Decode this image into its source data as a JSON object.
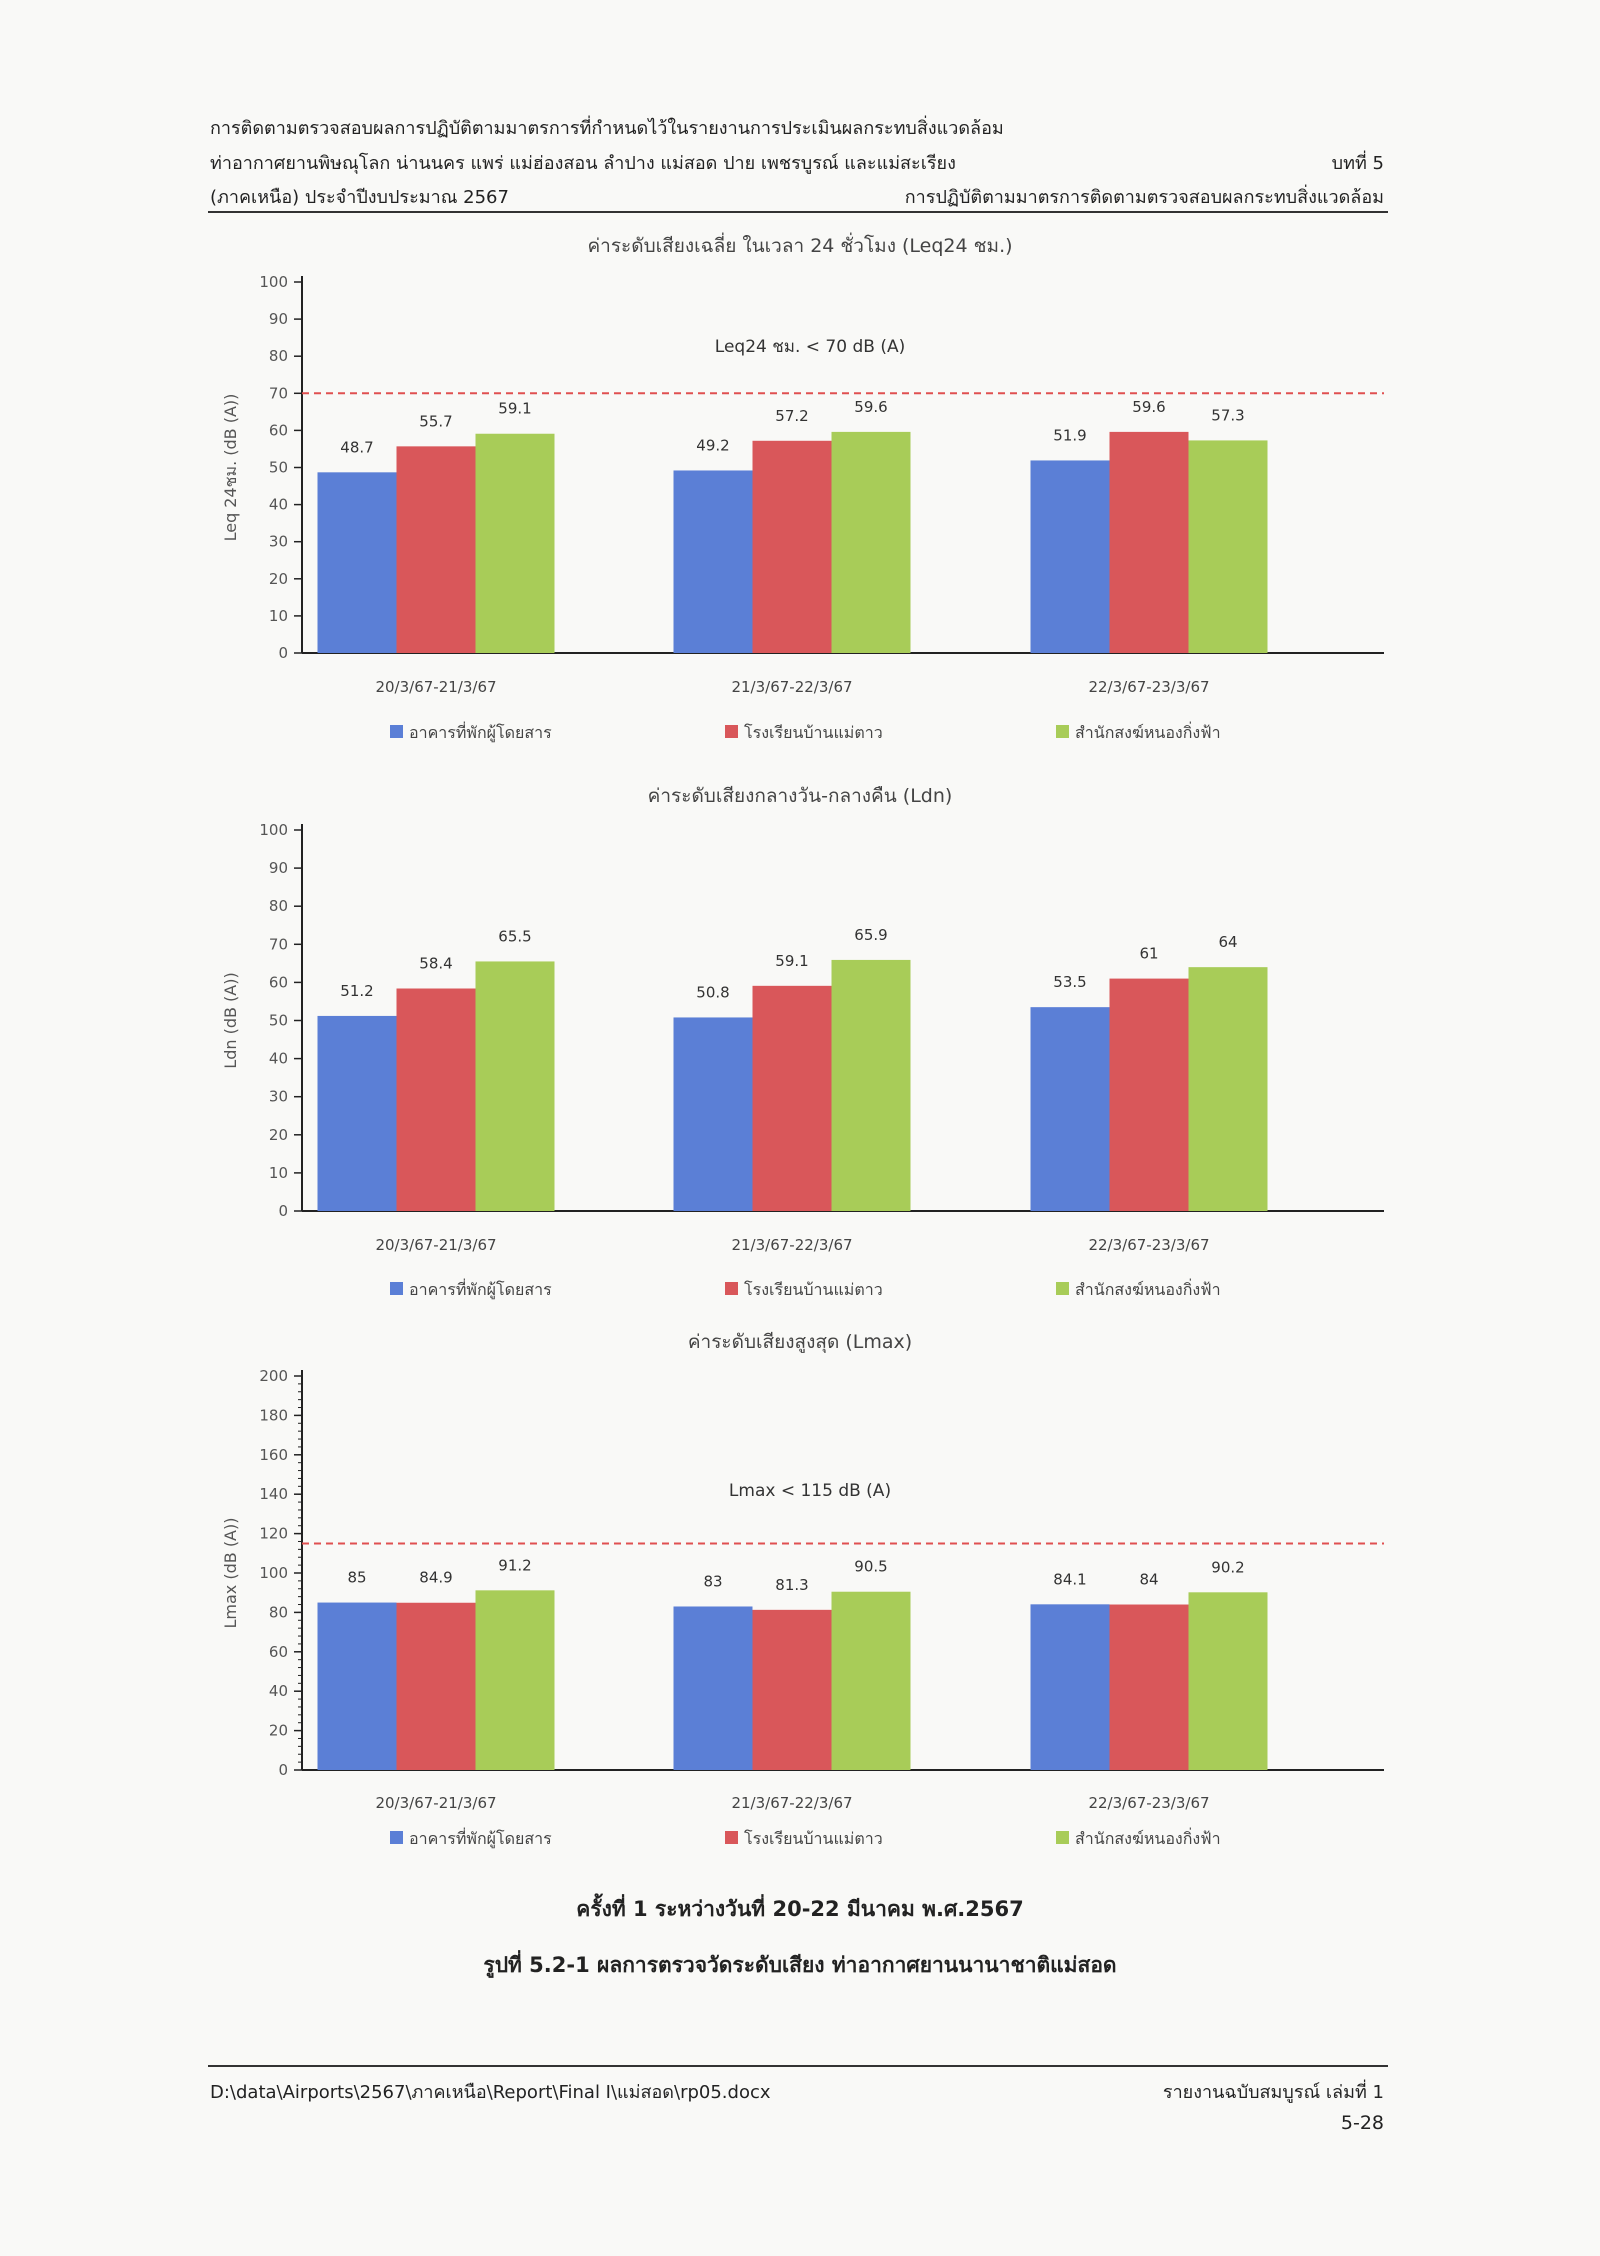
{
  "header": {
    "line1": "การติดตามตรวจสอบผลการปฏิบัติตามมาตรการที่กำหนดไว้ในรายงานการประเมินผลกระทบสิ่งแวดล้อม",
    "line2_left": "ท่าอากาศยานพิษณุโลก น่านนคร แพร่ แม่ฮ่องสอน ลำปาง แม่สอด ปาย เพชรบูรณ์ และแม่สะเรียง",
    "line2_right": "บทที่ 5",
    "line3_left": "(ภาคเหนือ) ประจำปีงบประมาณ 2567",
    "line3_right": "การปฏิบัติตามมาตรการติดตามตรวจสอบผลกระทบสิ่งแวดล้อม"
  },
  "colors": {
    "series1": "#5b7fd6",
    "series2": "#d9575a",
    "series3": "#a8cc58",
    "limit": "#e05050"
  },
  "chart_data": [
    {
      "type": "bar",
      "title": "ค่าระดับเสียงเฉลี่ย ในเวลา 24 ชั่วโมง (Leq24 ชม.)",
      "ylabel": "Leq 24ชม. (dB (A))",
      "xlabel": "",
      "ylim": [
        0,
        100
      ],
      "yticks": [
        0,
        10,
        20,
        30,
        40,
        50,
        60,
        70,
        80,
        90,
        100
      ],
      "categories": [
        "20/3/67-21/3/67",
        "21/3/67-22/3/67",
        "22/3/67-23/3/67"
      ],
      "series": [
        {
          "name": "อาคารที่พักผู้โดยสาร",
          "values": [
            48.7,
            49.2,
            51.9
          ]
        },
        {
          "name": "โรงเรียนบ้านแม่ตาว",
          "values": [
            55.7,
            57.2,
            59.6
          ]
        },
        {
          "name": "สำนักสงฆ์หนองกิ่งฟ้า",
          "values": [
            59.1,
            59.6,
            57.3
          ]
        }
      ],
      "limit": {
        "value": 70,
        "label": "Leq24 ชม. <  70 dB (A)"
      },
      "legend_position": "bottom"
    },
    {
      "type": "bar",
      "title": "ค่าระดับเสียงกลางวัน-กลางคืน (Ldn)",
      "ylabel": "Ldn  (dB (A))",
      "xlabel": "",
      "ylim": [
        0,
        100
      ],
      "yticks": [
        0,
        10,
        20,
        30,
        40,
        50,
        60,
        70,
        80,
        90,
        100
      ],
      "categories": [
        "20/3/67-21/3/67",
        "21/3/67-22/3/67",
        "22/3/67-23/3/67"
      ],
      "series": [
        {
          "name": "อาคารที่พักผู้โดยสาร",
          "values": [
            51.2,
            50.8,
            53.5
          ]
        },
        {
          "name": "โรงเรียนบ้านแม่ตาว",
          "values": [
            58.4,
            59.1,
            61
          ]
        },
        {
          "name": "สำนักสงฆ์หนองกิ่งฟ้า",
          "values": [
            65.5,
            65.9,
            64
          ]
        }
      ],
      "legend_position": "bottom"
    },
    {
      "type": "bar",
      "title": "ค่าระดับเสียงสูงสุด (Lmax)",
      "ylabel": "Lmax  (dB (A))",
      "xlabel": "",
      "ylim": [
        0,
        200
      ],
      "yticks": [
        0,
        20,
        40,
        60,
        80,
        100,
        120,
        140,
        160,
        180,
        200
      ],
      "categories": [
        "20/3/67-21/3/67",
        "21/3/67-22/3/67",
        "22/3/67-23/3/67"
      ],
      "series": [
        {
          "name": "อาคารที่พักผู้โดยสาร",
          "values": [
            85,
            83,
            84.1
          ]
        },
        {
          "name": "โรงเรียนบ้านแม่ตาว",
          "values": [
            84.9,
            81.3,
            84
          ]
        },
        {
          "name": "สำนักสงฆ์หนองกิ่งฟ้า",
          "values": [
            91.2,
            90.5,
            90.2
          ]
        }
      ],
      "limit": {
        "value": 115,
        "label": "Lmax <  115 dB (A)"
      },
      "legend_position": "bottom"
    }
  ],
  "caption": {
    "line1": "ครั้งที่ 1 ระหว่างวันที่ 20-22 มีนาคม พ.ศ.2567",
    "line2": "รูปที่ 5.2-1 ผลการตรวจวัดระดับเสียง ท่าอากาศยานนานาชาติแม่สอด"
  },
  "footer": {
    "path": "D:\\data\\Airports\\2567\\ภาคเหนือ\\Report\\Final I\\แม่สอด\\rp05.docx",
    "report": "รายงานฉบับสมบูรณ์ เล่มที่ 1",
    "page_number": "5-28"
  }
}
